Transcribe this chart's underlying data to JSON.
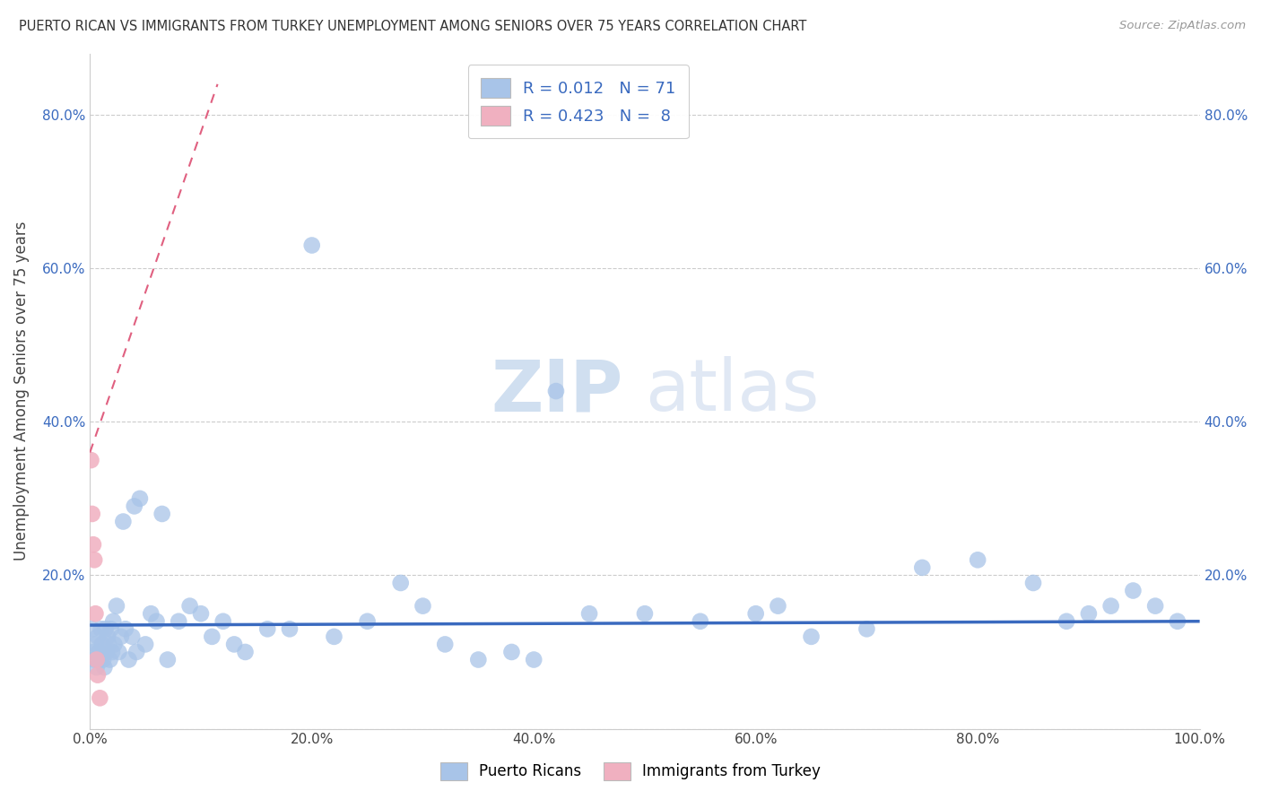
{
  "title": "PUERTO RICAN VS IMMIGRANTS FROM TURKEY UNEMPLOYMENT AMONG SENIORS OVER 75 YEARS CORRELATION CHART",
  "source": "Source: ZipAtlas.com",
  "ylabel": "Unemployment Among Seniors over 75 years",
  "xlim": [
    0.0,
    1.0
  ],
  "ylim": [
    0.0,
    0.88
  ],
  "xticks": [
    0.0,
    0.2,
    0.4,
    0.6,
    0.8,
    1.0
  ],
  "xtick_labels": [
    "0.0%",
    "20.0%",
    "40.0%",
    "60.0%",
    "80.0%",
    "100.0%"
  ],
  "ytick_labels": [
    "",
    "20.0%",
    "40.0%",
    "60.0%",
    "80.0%"
  ],
  "yticks": [
    0.0,
    0.2,
    0.4,
    0.6,
    0.8
  ],
  "blue_color": "#a8c4e8",
  "pink_color": "#f0b0c0",
  "trend_blue": "#3a6abf",
  "trend_pink": "#e06080",
  "legend_r1": "R = 0.012",
  "legend_n1": "N = 71",
  "legend_r2": "R = 0.423",
  "legend_n2": "N =  8",
  "watermark_zip": "ZIP",
  "watermark_atlas": "atlas",
  "blue_scatter_x": [
    0.002,
    0.003,
    0.004,
    0.005,
    0.006,
    0.007,
    0.008,
    0.009,
    0.01,
    0.011,
    0.012,
    0.013,
    0.014,
    0.015,
    0.016,
    0.017,
    0.018,
    0.019,
    0.02,
    0.021,
    0.022,
    0.024,
    0.026,
    0.028,
    0.03,
    0.032,
    0.035,
    0.038,
    0.04,
    0.042,
    0.045,
    0.05,
    0.055,
    0.06,
    0.065,
    0.07,
    0.08,
    0.09,
    0.1,
    0.11,
    0.12,
    0.13,
    0.14,
    0.16,
    0.18,
    0.2,
    0.22,
    0.25,
    0.28,
    0.3,
    0.32,
    0.35,
    0.38,
    0.4,
    0.42,
    0.45,
    0.5,
    0.55,
    0.6,
    0.62,
    0.65,
    0.7,
    0.75,
    0.8,
    0.85,
    0.88,
    0.9,
    0.92,
    0.94,
    0.96,
    0.98
  ],
  "blue_scatter_y": [
    0.13,
    0.1,
    0.09,
    0.11,
    0.08,
    0.12,
    0.1,
    0.09,
    0.13,
    0.11,
    0.09,
    0.08,
    0.13,
    0.1,
    0.12,
    0.11,
    0.09,
    0.13,
    0.1,
    0.14,
    0.11,
    0.16,
    0.1,
    0.12,
    0.27,
    0.13,
    0.09,
    0.12,
    0.29,
    0.1,
    0.3,
    0.11,
    0.15,
    0.14,
    0.28,
    0.09,
    0.14,
    0.16,
    0.15,
    0.12,
    0.14,
    0.11,
    0.1,
    0.13,
    0.13,
    0.63,
    0.12,
    0.14,
    0.19,
    0.16,
    0.11,
    0.09,
    0.1,
    0.09,
    0.44,
    0.15,
    0.15,
    0.14,
    0.15,
    0.16,
    0.12,
    0.13,
    0.21,
    0.22,
    0.19,
    0.14,
    0.15,
    0.16,
    0.18,
    0.16,
    0.14
  ],
  "pink_scatter_x": [
    0.001,
    0.002,
    0.003,
    0.004,
    0.005,
    0.006,
    0.007,
    0.009
  ],
  "pink_scatter_y": [
    0.35,
    0.28,
    0.24,
    0.22,
    0.15,
    0.09,
    0.07,
    0.04
  ],
  "blue_trendline_x": [
    0.0,
    1.0
  ],
  "blue_trendline_y": [
    0.135,
    0.14
  ],
  "pink_trendline_x": [
    0.0,
    0.115
  ],
  "pink_trendline_y": [
    0.36,
    0.84
  ]
}
